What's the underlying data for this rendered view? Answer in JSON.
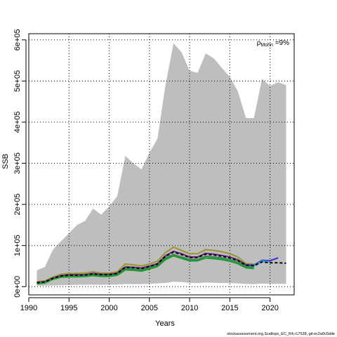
{
  "chart_data": {
    "type": "line",
    "title": "",
    "xlabel": "Years",
    "ylabel": "SSB",
    "xlim": [
      1990,
      2023
    ],
    "ylim": [
      -20000,
      615000
    ],
    "x_ticks": [
      1990,
      1995,
      2000,
      2005,
      2010,
      2015,
      2020
    ],
    "y_ticks": [
      {
        "value": 0,
        "label": "0e+00"
      },
      {
        "value": 100000,
        "label": "1e+05"
      },
      {
        "value": 200000,
        "label": "2e+05"
      },
      {
        "value": 300000,
        "label": "3e+05"
      },
      {
        "value": 400000,
        "label": "4e+05"
      },
      {
        "value": 500000,
        "label": "5e+05"
      },
      {
        "value": 600000,
        "label": "6e+05"
      }
    ],
    "grid": true,
    "annotation": {
      "prefix": "ρ",
      "subscript": "Mohn",
      "suffix": " =9%"
    },
    "credit": "stockassessment.org,Scallops_EC_R4,r17538, git:ec2a0c6dde",
    "band": {
      "color": "#bebebe",
      "x": [
        1991,
        1992,
        1993,
        1994,
        1995,
        1996,
        1997,
        1998,
        1999,
        2000,
        2001,
        2002,
        2003,
        2004,
        2005,
        2006,
        2007,
        2008,
        2009,
        2010,
        2011,
        2012,
        2013,
        2014,
        2015,
        2016,
        2017,
        2018,
        2019,
        2020,
        2021,
        2022
      ],
      "upper": [
        40000,
        48000,
        90000,
        110000,
        130000,
        150000,
        160000,
        190000,
        175000,
        195000,
        220000,
        318000,
        300000,
        285000,
        325000,
        360000,
        490000,
        592000,
        570000,
        525000,
        520000,
        567000,
        555000,
        532000,
        510000,
        475000,
        410000,
        410000,
        505000,
        488000,
        497000,
        490000
      ],
      "lower": [
        2000,
        2500,
        3000,
        3500,
        4000,
        4500,
        4500,
        5000,
        4500,
        5000,
        5000,
        6500,
        6000,
        6000,
        7000,
        8000,
        9000,
        12000,
        11000,
        9000,
        8500,
        10000,
        9500,
        9000,
        8500,
        8000,
        6500,
        6000,
        7500,
        7000,
        7000,
        7000
      ]
    },
    "series": [
      {
        "color": "#9a9a3a",
        "x": [
          1991,
          1992,
          1993,
          1994,
          1995,
          1996,
          1997,
          1998,
          1999,
          2000,
          2001,
          2002,
          2003,
          2004,
          2005,
          2006,
          2007,
          2008,
          2009,
          2010,
          2011,
          2012,
          2013,
          2014,
          2015,
          2016,
          2017,
          2018
        ],
        "values": [
          12000,
          14000,
          23000,
          30000,
          32000,
          32000,
          33000,
          36000,
          33000,
          33000,
          36000,
          55000,
          53000,
          50000,
          55000,
          62000,
          83000,
          96000,
          88000,
          80000,
          80000,
          90000,
          88000,
          85000,
          80000,
          72000,
          56000,
          55000
        ]
      },
      {
        "color": "#7a2a8a",
        "x": [
          1991,
          1992,
          1993,
          1994,
          1995,
          1996,
          1997,
          1998,
          1999,
          2000,
          2001,
          2002,
          2003,
          2004,
          2005,
          2006,
          2007,
          2008,
          2009,
          2010,
          2011,
          2012,
          2013,
          2014,
          2015,
          2016,
          2017,
          2018
        ],
        "values": [
          10000,
          12000,
          21000,
          27000,
          29000,
          29000,
          29000,
          32000,
          30000,
          30000,
          33000,
          48000,
          47000,
          45000,
          50000,
          56000,
          75000,
          86000,
          80000,
          72000,
          72000,
          81000,
          79000,
          76000,
          72000,
          65000,
          53000,
          52000
        ]
      },
      {
        "color": "#3a3acf",
        "x": [
          2017,
          2018,
          2019,
          2020,
          2021
        ],
        "values": [
          53000,
          52000,
          64000,
          63000,
          70000
        ]
      },
      {
        "color": "#3aaacf",
        "x": [
          2017,
          2018,
          2019,
          2020
        ],
        "values": [
          48000,
          50000,
          62000,
          60000
        ]
      },
      {
        "color": "#3a8a5a",
        "x": [
          1991,
          1992,
          1993,
          1994,
          1995,
          1996,
          1997,
          1998,
          1999,
          2000,
          2001,
          2002,
          2003,
          2004,
          2005,
          2006,
          2007,
          2008,
          2009,
          2010,
          2011,
          2012,
          2013,
          2014,
          2015,
          2016,
          2017,
          2018
        ],
        "values": [
          8000,
          10000,
          19000,
          24000,
          26000,
          26000,
          26000,
          29000,
          27000,
          27000,
          30000,
          44000,
          43000,
          41000,
          46000,
          52000,
          70000,
          78000,
          72000,
          66000,
          66000,
          74000,
          72000,
          70000,
          66000,
          60000,
          49000,
          47000
        ]
      },
      {
        "color": "#1a9a2a",
        "x": [
          1991,
          1992,
          1993,
          1994,
          1995,
          1996,
          1997,
          1998,
          1999,
          2000,
          2001,
          2002,
          2003,
          2004,
          2005,
          2006,
          2007,
          2008,
          2009,
          2010,
          2011,
          2012,
          2013,
          2014,
          2015,
          2016,
          2017,
          2018
        ],
        "values": [
          7000,
          9000,
          18000,
          23000,
          24000,
          24000,
          25000,
          27000,
          25000,
          25000,
          28000,
          41000,
          40000,
          38000,
          43000,
          49000,
          66000,
          75000,
          69000,
          63000,
          63000,
          70000,
          68000,
          66000,
          62000,
          56000,
          46000,
          44000
        ]
      },
      {
        "color": "#000000",
        "dashed": true,
        "x": [
          1991,
          1992,
          1993,
          1994,
          1995,
          1996,
          1997,
          1998,
          1999,
          2000,
          2001,
          2002,
          2003,
          2004,
          2005,
          2006,
          2007,
          2008,
          2009,
          2010,
          2011,
          2012,
          2013,
          2014,
          2015,
          2016,
          2017,
          2018,
          2019,
          2020,
          2021,
          2022
        ],
        "values": [
          9500,
          11500,
          20500,
          26000,
          28000,
          28000,
          28500,
          31000,
          29000,
          29000,
          32000,
          47000,
          46000,
          44000,
          49000,
          55000,
          74000,
          84000,
          78000,
          71000,
          71000,
          79000,
          77000,
          74000,
          70000,
          64000,
          52000,
          51000,
          60000,
          58000,
          58000,
          57000
        ]
      }
    ]
  }
}
